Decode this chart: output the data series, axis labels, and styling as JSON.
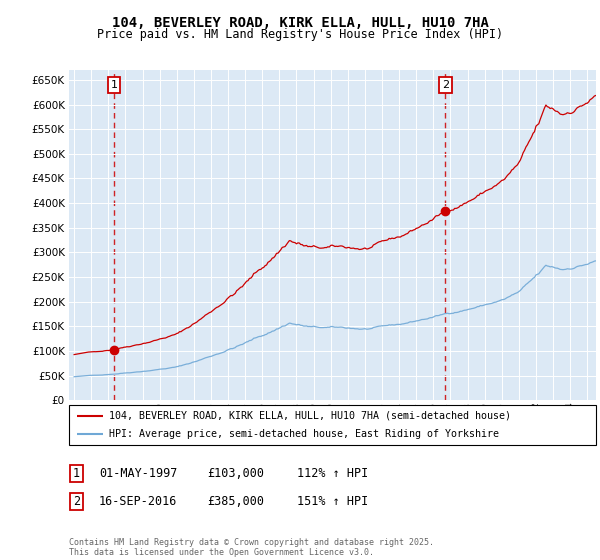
{
  "title": "104, BEVERLEY ROAD, KIRK ELLA, HULL, HU10 7HA",
  "subtitle": "Price paid vs. HM Land Registry's House Price Index (HPI)",
  "ylim": [
    0,
    670000
  ],
  "yticks": [
    0,
    50000,
    100000,
    150000,
    200000,
    250000,
    300000,
    350000,
    400000,
    450000,
    500000,
    550000,
    600000,
    650000
  ],
  "xlim_start": 1994.7,
  "xlim_end": 2025.5,
  "t1_date": 1997.33,
  "t1_price": 103000,
  "t2_date": 2016.71,
  "t2_price": 385000,
  "legend_line1": "104, BEVERLEY ROAD, KIRK ELLA, HULL, HU10 7HA (semi-detached house)",
  "legend_line2": "HPI: Average price, semi-detached house, East Riding of Yorkshire",
  "table_row1_date": "01-MAY-1997",
  "table_row1_price": "£103,000",
  "table_row1_hpi": "112% ↑ HPI",
  "table_row2_date": "16-SEP-2016",
  "table_row2_price": "£385,000",
  "table_row2_hpi": "151% ↑ HPI",
  "footer": "Contains HM Land Registry data © Crown copyright and database right 2025.\nThis data is licensed under the Open Government Licence v3.0.",
  "red_color": "#cc0000",
  "blue_color": "#6fa8d6",
  "plot_bg_color": "#dce9f5",
  "grid_color": "#ffffff",
  "hpi_base_index": 48000,
  "hpi_base_year": 1995.0
}
